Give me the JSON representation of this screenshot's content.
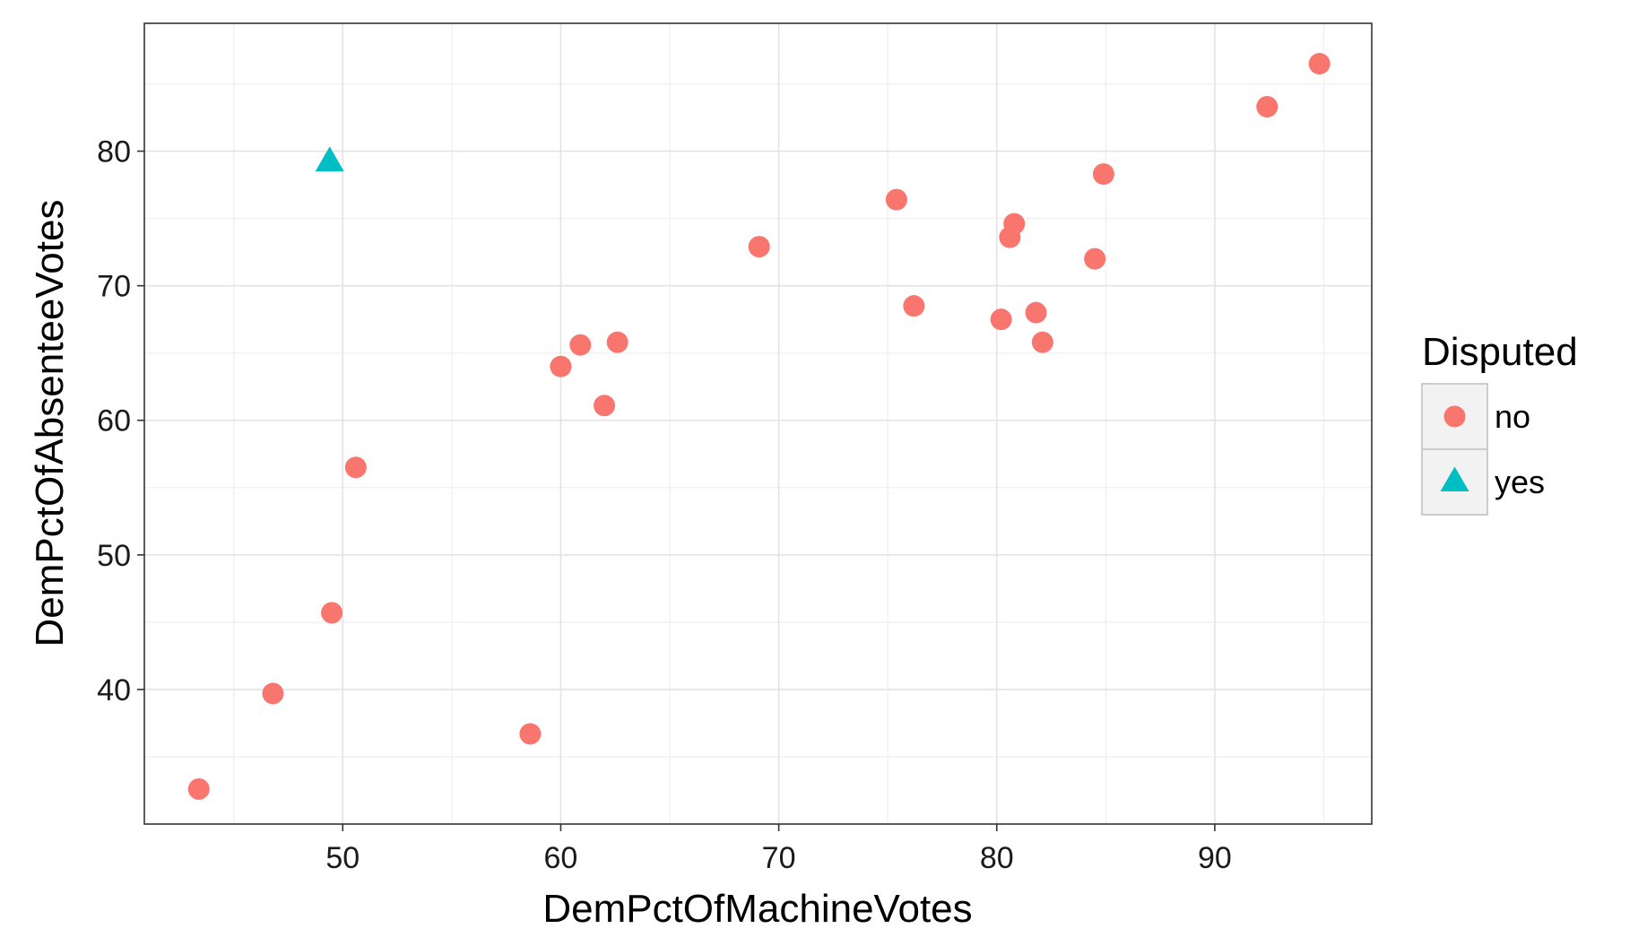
{
  "chart_data": {
    "type": "scatter",
    "xlabel": "DemPctOfMachineVotes",
    "ylabel": "DemPctOfAbsenteeVotes",
    "xlim": [
      40.9,
      97.2
    ],
    "ylim": [
      30.0,
      89.5
    ],
    "x_ticks": [
      50,
      60,
      70,
      80,
      90
    ],
    "y_ticks": [
      40,
      50,
      60,
      70,
      80
    ],
    "grid": true,
    "legend": {
      "title": "Disputed",
      "position": "right",
      "entries": [
        {
          "label": "no",
          "shape": "circle",
          "color": "#F8766D"
        },
        {
          "label": "yes",
          "shape": "triangle",
          "color": "#00BFC4"
        }
      ]
    },
    "series": [
      {
        "name": "no",
        "shape": "circle",
        "color": "#F8766D",
        "x": [
          43.4,
          46.8,
          49.5,
          50.6,
          58.6,
          60.0,
          60.9,
          62.0,
          62.6,
          69.1,
          75.4,
          76.2,
          80.2,
          80.6,
          80.8,
          81.8,
          82.1,
          84.5,
          84.9,
          92.4,
          94.8
        ],
        "y": [
          32.6,
          39.7,
          45.7,
          56.5,
          36.7,
          64.0,
          65.6,
          61.1,
          65.8,
          72.9,
          76.4,
          68.5,
          67.5,
          73.6,
          74.6,
          68.0,
          65.8,
          72.0,
          78.3,
          83.3,
          86.5
        ]
      },
      {
        "name": "yes",
        "shape": "triangle",
        "color": "#00BFC4",
        "x": [
          49.4
        ],
        "y": [
          79.2
        ]
      }
    ]
  }
}
